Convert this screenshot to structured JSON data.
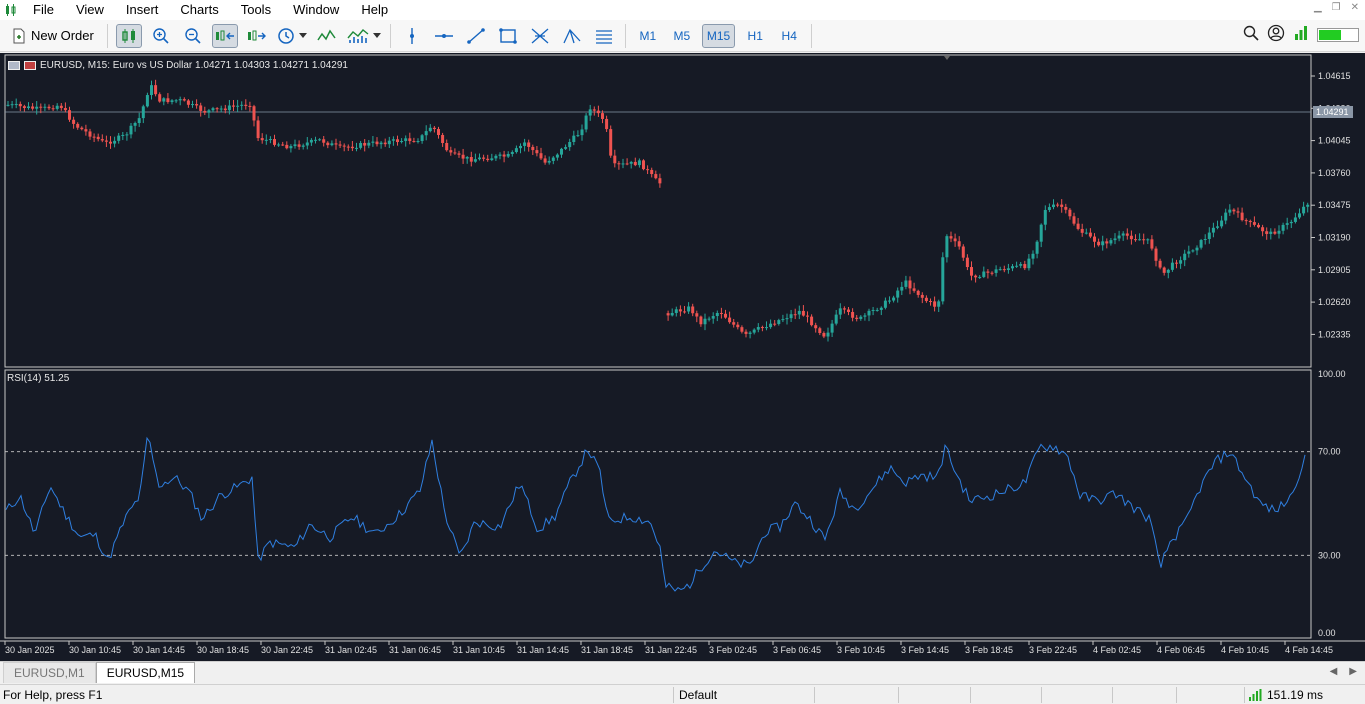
{
  "menu": {
    "items": [
      "File",
      "View",
      "Insert",
      "Charts",
      "Tools",
      "Window",
      "Help"
    ]
  },
  "toolbar": {
    "new_order_label": "New Order",
    "timeframes": [
      "M1",
      "M5",
      "M15",
      "H1",
      "H4"
    ],
    "active_timeframe": "M15"
  },
  "chart": {
    "symbol_header": "EURUSD, M15:  Euro vs US Dollar  1.04271 1.04303 1.04271 1.04291",
    "current_price": "1.04291",
    "price_hint_label": "1.04330",
    "price_axis": [
      "1.04615",
      "1.04330",
      "1.04045",
      "1.03760",
      "1.03475",
      "1.03190",
      "1.02905",
      "1.02620",
      "1.02335"
    ],
    "time_axis": [
      "30 Jan 2025",
      "30 Jan 10:45",
      "30 Jan 14:45",
      "30 Jan 18:45",
      "30 Jan 22:45",
      "31 Jan 02:45",
      "31 Jan 06:45",
      "31 Jan 10:45",
      "31 Jan 14:45",
      "31 Jan 18:45",
      "31 Jan 22:45",
      "3 Feb 02:45",
      "3 Feb 06:45",
      "3 Feb 10:45",
      "3 Feb 14:45",
      "3 Feb 18:45",
      "3 Feb 22:45",
      "4 Feb 02:45",
      "4 Feb 06:45",
      "4 Feb 10:45",
      "4 Feb 14:45"
    ],
    "bull_color": "#26a69a",
    "bear_color": "#ef5350"
  },
  "indicator": {
    "label": "RSI(14) 51.25",
    "axis": [
      "100.00",
      "70.00",
      "30.00",
      "0.00"
    ],
    "line_color": "#2f7fe0"
  },
  "tabs": [
    "EURUSD,M1",
    "EURUSD,M15"
  ],
  "active_tab": "EURUSD,M15",
  "status": {
    "help": "For Help, press F1",
    "profile": "Default",
    "ping": "151.19 ms"
  }
}
